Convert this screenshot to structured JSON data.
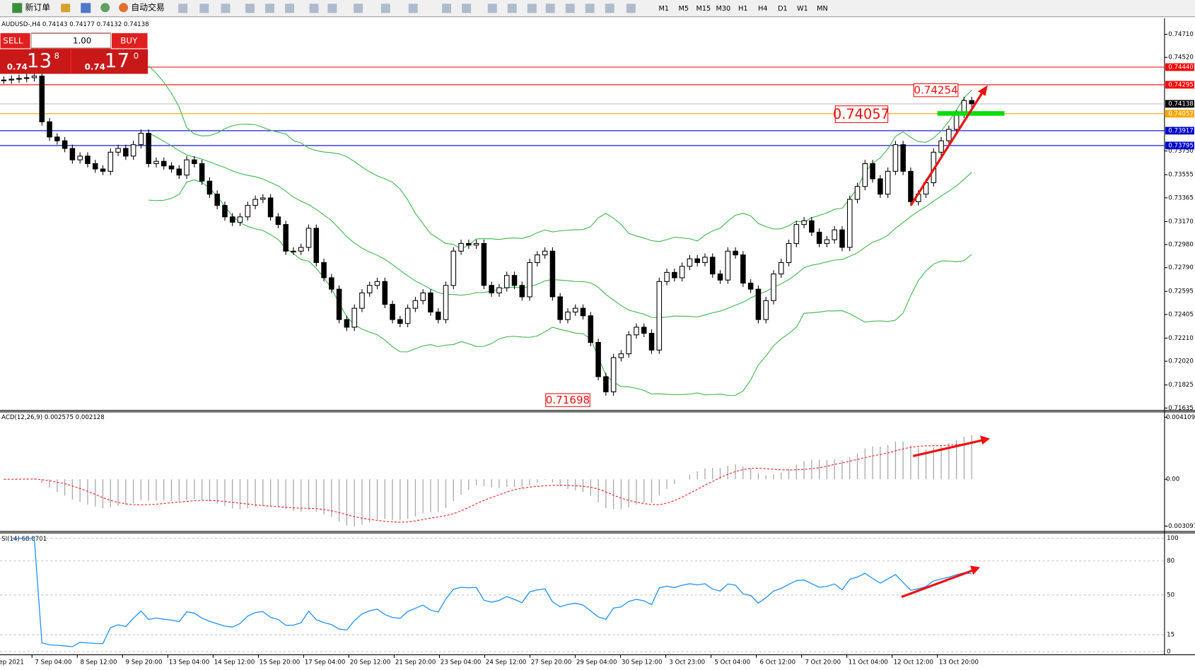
{
  "toolbar": {
    "new_order": "新订单",
    "auto_trading": "自动交易",
    "timeframes": [
      "M1",
      "M5",
      "M15",
      "M30",
      "H1",
      "H4",
      "D1",
      "W1",
      "MN"
    ]
  },
  "trade_panel": {
    "sell": "SELL",
    "buy": "BUY",
    "lots": "1.00",
    "sell_big": "0.74",
    "sell_pips": "13",
    "sell_frac": "8",
    "buy_big": "0.74",
    "buy_pips": "17",
    "buy_frac": "0"
  },
  "chart": {
    "header": "AUDUSD-,H4  0.74143 0.74177 0.74132 0.74138",
    "ylim": [
      0.71622,
      0.74842
    ],
    "yticks": [
      {
        "value": 0.7471,
        "label": "0.74710"
      },
      {
        "value": 0.7452,
        "label": "0.74520"
      },
      {
        "value": 0.7375,
        "label": "0.73750"
      },
      {
        "value": 0.73555,
        "label": "0.73555"
      },
      {
        "value": 0.73365,
        "label": "0.73365"
      },
      {
        "value": 0.7317,
        "label": "0.73170"
      },
      {
        "value": 0.7298,
        "label": "0.72980"
      },
      {
        "value": 0.7279,
        "label": "0.72790"
      },
      {
        "value": 0.72595,
        "label": "0.72595"
      },
      {
        "value": 0.72405,
        "label": "0.72405"
      },
      {
        "value": 0.7221,
        "label": "0.72210"
      },
      {
        "value": 0.7202,
        "label": "0.72020"
      },
      {
        "value": 0.71825,
        "label": "0.71825"
      },
      {
        "value": 0.71635,
        "label": "0.71635"
      }
    ],
    "levels": [
      {
        "value": 0.7444,
        "label": "0.74440",
        "color": "#ff0000",
        "line_color": "#ff0000"
      },
      {
        "value": 0.74295,
        "label": "0.74295",
        "color": "#ff0000",
        "line_color": "#ff0000"
      },
      {
        "value": 0.74138,
        "label": "0.74138",
        "color": "#000000",
        "line_color": "#c0c0c0"
      },
      {
        "value": 0.74057,
        "label": "0.74057",
        "color": "#ffa500",
        "line_color": "#ffa500"
      },
      {
        "value": 0.73917,
        "label": "0.73917",
        "color": "#0000cc",
        "line_color": "#0000cc"
      },
      {
        "value": 0.73795,
        "label": "0.73795",
        "color": "#0000cc",
        "line_color": "#0000cc"
      }
    ],
    "annotations": [
      "0.74254",
      "0.74057",
      "0.71698"
    ],
    "closes": [
      0.74334,
      0.74341,
      0.74347,
      0.74353,
      0.74366,
      0.7399,
      0.73865,
      0.73834,
      0.73771,
      0.73677,
      0.73708,
      0.73646,
      0.73602,
      0.73583,
      0.7374,
      0.73771,
      0.73708,
      0.73802,
      0.73896,
      0.73646,
      0.73665,
      0.73627,
      0.73602,
      0.73552,
      0.73677,
      0.73646,
      0.73502,
      0.73395,
      0.73302,
      0.73208,
      0.73164,
      0.73208,
      0.73302,
      0.73352,
      0.73364,
      0.73208,
      0.73145,
      0.72926,
      0.72926,
      0.72957,
      0.73114,
      0.72832,
      0.72707,
      0.72613,
      0.72363,
      0.723,
      0.72456,
      0.72582,
      0.72644,
      0.72676,
      0.72488,
      0.72363,
      0.72331,
      0.72456,
      0.72519,
      0.72582,
      0.72425,
      0.72363,
      0.72644,
      0.72926,
      0.72989,
      0.72976,
      0.72989,
      0.72644,
      0.72582,
      0.72625,
      0.72726,
      0.72644,
      0.7255,
      0.72832,
      0.72895,
      0.72926,
      0.7255,
      0.72363,
      0.72425,
      0.72456,
      0.72394,
      0.72175,
      0.71893,
      0.71768,
      0.7205,
      0.72081,
      0.72237,
      0.723,
      0.7225,
      0.72112,
      0.72676,
      0.72751,
      0.72707,
      0.72801,
      0.72863,
      0.72832,
      0.72876,
      0.72738,
      0.72688,
      0.72926,
      0.72895,
      0.72663,
      0.72613,
      0.72363,
      0.72519,
      0.72738,
      0.72832,
      0.72989,
      0.73145,
      0.73176,
      0.73082,
      0.72989,
      0.7302,
      0.73101,
      0.72957,
      0.73352,
      0.73458,
      0.73646,
      0.73521,
      0.73395,
      0.73583,
      0.73802,
      0.73583,
      0.73333,
      0.73395,
      0.73489,
      0.7374,
      0.73834,
      0.73928,
      0.74053,
      0.74165,
      0.74138
    ],
    "time_labels": [
      "ep 2021",
      "7 Sep 04:00",
      "8 Sep 12:00",
      "9 Sep 20:00",
      "13 Sep 04:00",
      "14 Sep 12:00",
      "15 Sep 20:00",
      "17 Sep 04:00",
      "20 Sep 12:00",
      "21 Sep 20:00",
      "23 Sep 04:00",
      "24 Sep 12:00",
      "27 Sep 20:00",
      "29 Sep 04:00",
      "30 Sep 12:00",
      "3 Oct 23:00",
      "5 Oct 04:00",
      "6 Oct 12:00",
      "7 Oct 20:00",
      "11 Oct 04:00",
      "12 Oct 12:00",
      "13 Oct 20:00"
    ]
  },
  "macd": {
    "header": "ACD(12,26,9) 0.002575 0.002128",
    "ylim": [
      -0.003097,
      0.004109
    ],
    "yticks": [
      0.004109,
      {
        "value": 0,
        "label": "0.00"
      },
      -0.003097
    ]
  },
  "rsi": {
    "header": "SI(14) 68.8701",
    "ylim": [
      0,
      100
    ],
    "yticks": [
      100,
      80,
      50,
      15,
      0
    ]
  }
}
